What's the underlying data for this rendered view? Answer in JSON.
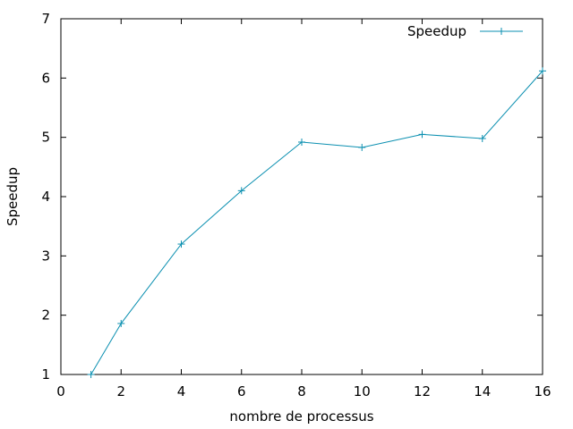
{
  "chart_data": {
    "type": "line",
    "title": "",
    "xlabel": "nombre de processus",
    "ylabel": "Speedup",
    "xlim": [
      0,
      16
    ],
    "ylim": [
      1,
      7
    ],
    "xticks": [
      "0",
      "2",
      "4",
      "6",
      "8",
      "10",
      "12",
      "14",
      "16"
    ],
    "yticks": [
      "1",
      "2",
      "3",
      "4",
      "5",
      "6",
      "7"
    ],
    "grid": false,
    "legend_position": "top-right",
    "series": [
      {
        "name": "Speedup",
        "color": "#0a8fb0",
        "marker": "plus",
        "x": [
          1,
          2,
          4,
          6,
          8,
          10,
          12,
          14,
          16
        ],
        "y": [
          1.0,
          1.86,
          3.2,
          4.1,
          4.92,
          4.83,
          5.05,
          4.98,
          6.12
        ]
      }
    ]
  }
}
